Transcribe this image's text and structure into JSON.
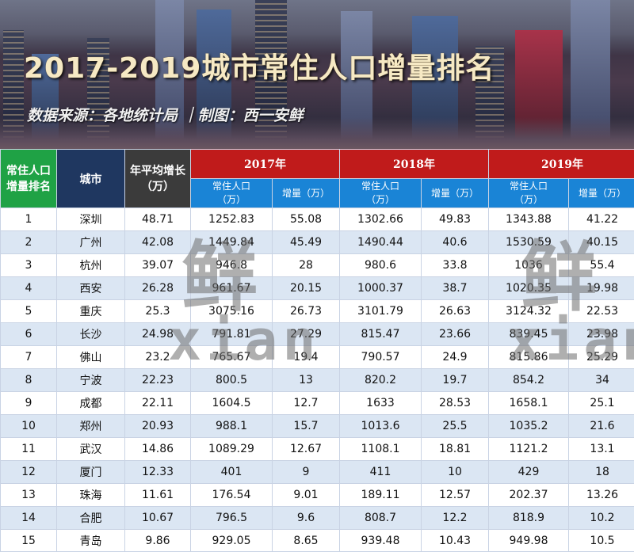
{
  "banner": {
    "title": "2017-2019城市常住人口增量排名",
    "source": "数据来源：各地统计局 ｜制图：西一安鲜"
  },
  "header": {
    "rank": [
      "常住人口",
      "增量排名"
    ],
    "city": "城市",
    "avg": [
      "年平均增长",
      "（万）"
    ],
    "years": [
      "2017年",
      "2018年",
      "2019年"
    ],
    "pop": [
      "常住人口",
      "（万）"
    ],
    "inc": "增量（万）"
  },
  "rows": [
    [
      "1",
      "深圳",
      "48.71",
      "1252.83",
      "55.08",
      "1302.66",
      "49.83",
      "1343.88",
      "41.22"
    ],
    [
      "2",
      "广州",
      "42.08",
      "1449.84",
      "45.49",
      "1490.44",
      "40.6",
      "1530.59",
      "40.15"
    ],
    [
      "3",
      "杭州",
      "39.07",
      "946.8",
      "28",
      "980.6",
      "33.8",
      "1036",
      "55.4"
    ],
    [
      "4",
      "西安",
      "26.28",
      "961.67",
      "20.15",
      "1000.37",
      "38.7",
      "1020.35",
      "19.98"
    ],
    [
      "5",
      "重庆",
      "25.3",
      "3075.16",
      "26.73",
      "3101.79",
      "26.63",
      "3124.32",
      "22.53"
    ],
    [
      "6",
      "长沙",
      "24.98",
      "791.81",
      "27.29",
      "815.47",
      "23.66",
      "839.45",
      "23.98"
    ],
    [
      "7",
      "佛山",
      "23.2",
      "765.67",
      "19.4",
      "790.57",
      "24.9",
      "815.86",
      "25.29"
    ],
    [
      "8",
      "宁波",
      "22.23",
      "800.5",
      "13",
      "820.2",
      "19.7",
      "854.2",
      "34"
    ],
    [
      "9",
      "成都",
      "22.11",
      "1604.5",
      "12.7",
      "1633",
      "28.53",
      "1658.1",
      "25.1"
    ],
    [
      "10",
      "郑州",
      "20.93",
      "988.1",
      "15.7",
      "1013.6",
      "25.5",
      "1035.2",
      "21.6"
    ],
    [
      "11",
      "武汉",
      "14.86",
      "1089.29",
      "12.67",
      "1108.1",
      "18.81",
      "1121.2",
      "13.1"
    ],
    [
      "12",
      "厦门",
      "12.33",
      "401",
      "9",
      "411",
      "10",
      "429",
      "18"
    ],
    [
      "13",
      "珠海",
      "11.61",
      "176.54",
      "9.01",
      "189.11",
      "12.57",
      "202.37",
      "13.26"
    ],
    [
      "14",
      "合肥",
      "10.67",
      "796.5",
      "9.6",
      "808.7",
      "12.2",
      "818.9",
      "10.2"
    ],
    [
      "15",
      "青岛",
      "9.86",
      "929.05",
      "8.65",
      "939.48",
      "10.43",
      "949.98",
      "10.5"
    ]
  ],
  "watermark": {
    "glyph": "鲜",
    "latin": "xian"
  },
  "colors": {
    "rank_header": "#1fa245",
    "city_header": "#1f3760",
    "avg_header": "#3b3b3b",
    "year_header": "#c01b1b",
    "sub_header": "#1a84d6",
    "stripe": "#dbe6f3"
  }
}
